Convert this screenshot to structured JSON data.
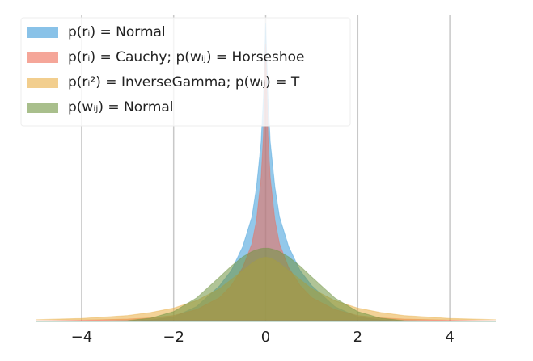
{
  "chart_data": {
    "type": "area",
    "x": [
      -5,
      -4,
      -3,
      -2.5,
      -2,
      -1.5,
      -1,
      -0.75,
      -0.5,
      -0.3,
      -0.2,
      -0.1,
      -0.05,
      0,
      0.05,
      0.1,
      0.2,
      0.3,
      0.5,
      0.75,
      1,
      1.5,
      2,
      2.5,
      3,
      4,
      5
    ],
    "series": [
      {
        "name": "p(rᵢ) = Normal",
        "color": "#3a9ad9",
        "values": [
          0,
          0,
          0.002,
          0.005,
          0.015,
          0.05,
          0.12,
          0.17,
          0.25,
          0.35,
          0.45,
          0.6,
          0.75,
          1.0,
          0.75,
          0.6,
          0.45,
          0.35,
          0.25,
          0.17,
          0.12,
          0.05,
          0.015,
          0.005,
          0.002,
          0,
          0
        ]
      },
      {
        "name": "p(rᵢ) = Cauchy; p(wᵢⱼ) = Horseshoe",
        "color": "#ef6a55",
        "values": [
          0.002,
          0.004,
          0.008,
          0.012,
          0.02,
          0.04,
          0.08,
          0.12,
          0.18,
          0.26,
          0.34,
          0.48,
          0.62,
          0.93,
          0.62,
          0.48,
          0.34,
          0.26,
          0.18,
          0.12,
          0.08,
          0.04,
          0.02,
          0.012,
          0.008,
          0.004,
          0.002
        ]
      },
      {
        "name": "p(rᵢ²) = InverseGamma; p(wᵢⱼ) = T",
        "color": "#e9ad42",
        "values": [
          0.006,
          0.01,
          0.02,
          0.03,
          0.045,
          0.07,
          0.11,
          0.14,
          0.17,
          0.195,
          0.205,
          0.212,
          0.214,
          0.215,
          0.214,
          0.212,
          0.205,
          0.195,
          0.17,
          0.14,
          0.11,
          0.07,
          0.045,
          0.03,
          0.02,
          0.01,
          0.006
        ]
      },
      {
        "name": "p(wᵢⱼ) = Normal",
        "color": "#6f9440",
        "values": [
          0,
          0,
          0.003,
          0.011,
          0.033,
          0.079,
          0.149,
          0.185,
          0.216,
          0.234,
          0.24,
          0.244,
          0.245,
          0.245,
          0.245,
          0.244,
          0.24,
          0.234,
          0.216,
          0.185,
          0.149,
          0.079,
          0.033,
          0.011,
          0.003,
          0,
          0
        ]
      }
    ],
    "xlim": [
      -5,
      5
    ],
    "ylim": [
      0,
      1
    ],
    "xticks": [
      {
        "value": -4,
        "label": "−4"
      },
      {
        "value": -2,
        "label": "−2"
      },
      0,
      2,
      4
    ],
    "grid": true,
    "legend": "upper left"
  }
}
